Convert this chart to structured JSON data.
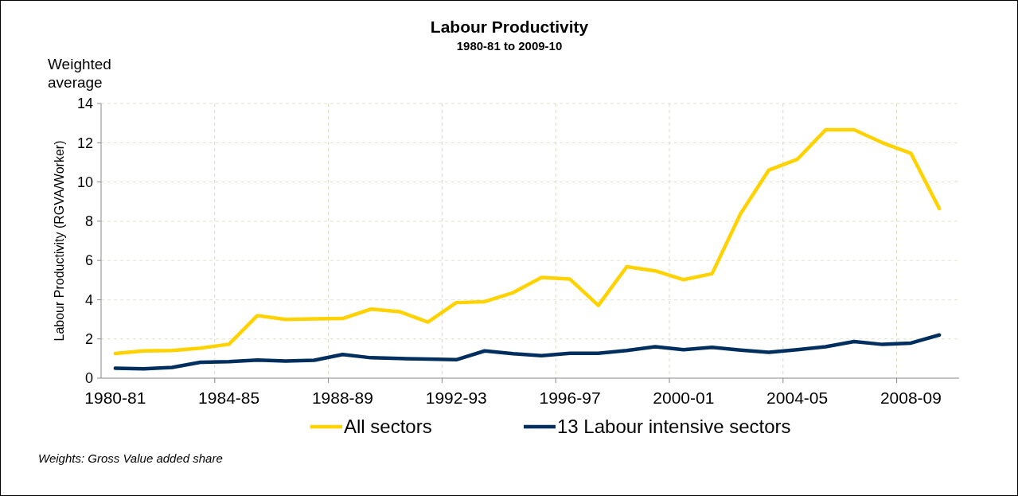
{
  "chart_data": {
    "type": "line",
    "title": "Labour Productivity",
    "subtitle": "1980-81 to 2009-10",
    "ylabel": "Labour Productivity (RGVA/Worker)",
    "annotations": [
      "Weighted average",
      "Weights: Gross Value added share"
    ],
    "categories": [
      "1980-81",
      null,
      null,
      null,
      "1984-85",
      null,
      null,
      null,
      "1988-89",
      null,
      null,
      null,
      "1992-93",
      null,
      null,
      null,
      "1996-97",
      null,
      null,
      null,
      "2000-01",
      null,
      null,
      null,
      "2004-05",
      null,
      null,
      null,
      "2008-09",
      null
    ],
    "series": [
      {
        "name": "All sectors",
        "color": "#ffd200",
        "values": [
          1.26,
          1.39,
          1.41,
          1.53,
          1.73,
          3.19,
          2.99,
          3.02,
          3.04,
          3.52,
          3.39,
          2.86,
          3.85,
          3.9,
          4.36,
          5.13,
          5.05,
          3.71,
          5.68,
          5.47,
          5.02,
          5.32,
          8.37,
          10.61,
          11.15,
          12.66,
          12.66,
          12.0,
          11.46,
          8.64
        ]
      },
      {
        "name": "13 Labour intensive sectors",
        "color": "#002f5f",
        "values": [
          0.51,
          0.48,
          0.55,
          0.81,
          0.84,
          0.92,
          0.87,
          0.91,
          1.21,
          1.04,
          1.0,
          0.97,
          0.94,
          1.39,
          1.25,
          1.15,
          1.27,
          1.27,
          1.41,
          1.6,
          1.45,
          1.57,
          1.43,
          1.32,
          1.45,
          1.6,
          1.87,
          1.72,
          1.79,
          2.2
        ]
      }
    ],
    "ylim": [
      0,
      14
    ],
    "yticks": [
      0,
      2,
      4,
      6,
      8,
      10,
      12,
      14
    ],
    "grid": true,
    "legend": "bottom",
    "line_style": "solid",
    "marker": "none"
  }
}
